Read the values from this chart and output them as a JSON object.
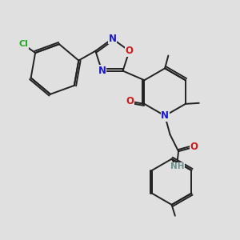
{
  "bg_color": "#e0e0e0",
  "bond_color": "#222222",
  "bond_width": 1.4,
  "atom_colors": {
    "C": "#222222",
    "N": "#1a1acc",
    "O": "#cc1a1a",
    "Cl": "#22aa22",
    "H": "#6a9090",
    "NH": "#6a9090"
  },
  "font_size": 8.5
}
